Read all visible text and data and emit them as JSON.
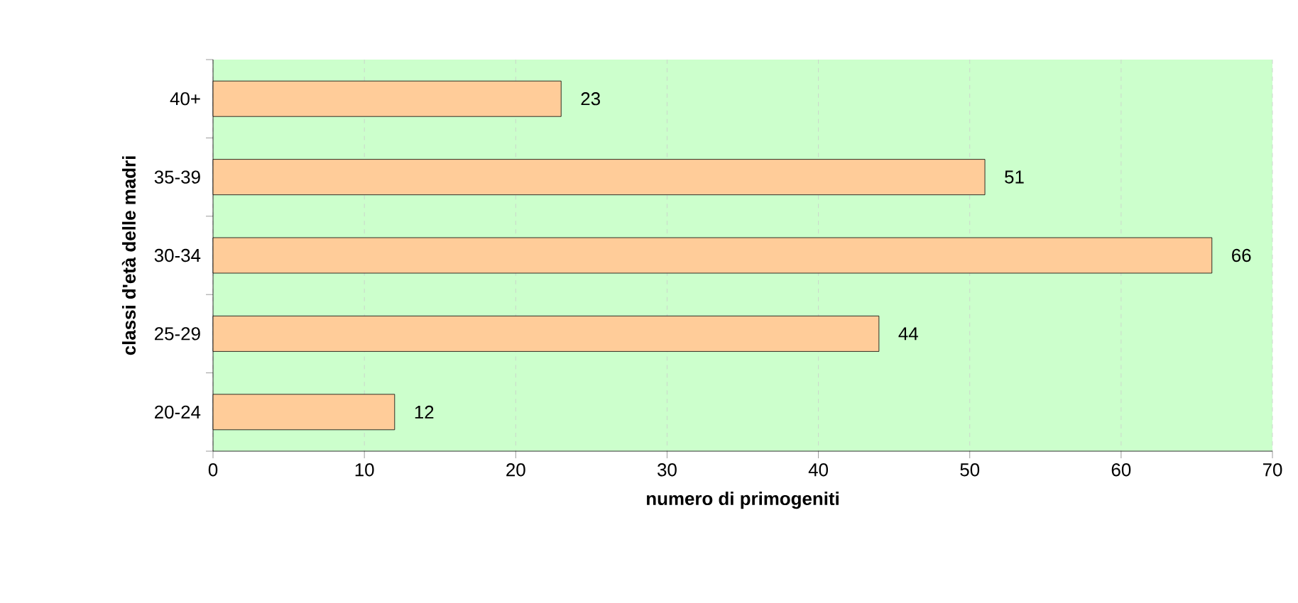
{
  "chart_data": {
    "type": "bar",
    "orientation": "horizontal",
    "xlabel": "numero di primogeniti",
    "ylabel": "classi d'età delle madri",
    "categories": [
      "40+",
      "35-39",
      "30-34",
      "25-29",
      "20-24"
    ],
    "values": [
      23,
      51,
      66,
      44,
      12
    ],
    "color": "#ffcc99",
    "xlim": [
      0,
      70
    ],
    "xticks": [
      0,
      10,
      20,
      30,
      40,
      50,
      60,
      70
    ],
    "grid": "x",
    "data_labels": true
  }
}
